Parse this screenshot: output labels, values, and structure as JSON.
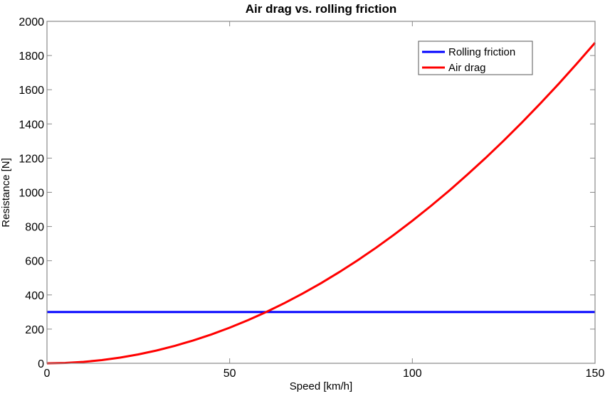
{
  "chart_data": {
    "type": "line",
    "title": "Air drag vs. rolling friction",
    "xlabel": "Speed [km/h]",
    "ylabel": "Resistance [N]",
    "xlim": [
      0,
      150
    ],
    "ylim": [
      0,
      2000
    ],
    "xticks": [
      0,
      50,
      100,
      150
    ],
    "yticks": [
      0,
      200,
      400,
      600,
      800,
      1000,
      1200,
      1400,
      1600,
      1800,
      2000
    ],
    "grid": false,
    "legend_position": "top-right",
    "series": [
      {
        "name": "Rolling friction",
        "color": "#0000ff",
        "x": [
          0,
          150
        ],
        "y": [
          300,
          300
        ]
      },
      {
        "name": "Air drag",
        "color": "#ff0000",
        "x": [
          0,
          5,
          10,
          15,
          20,
          25,
          30,
          35,
          40,
          45,
          50,
          55,
          60,
          65,
          70,
          75,
          80,
          85,
          90,
          95,
          100,
          105,
          110,
          115,
          120,
          125,
          130,
          135,
          140,
          145,
          150
        ],
        "y": [
          0,
          2.1,
          8.3,
          18.8,
          33.3,
          52.1,
          75,
          102.1,
          133.3,
          168.8,
          208.3,
          252.1,
          300,
          352.1,
          408.3,
          468.8,
          533.3,
          602.1,
          675,
          752.1,
          833.3,
          918.8,
          1008.3,
          1102.1,
          1200,
          1302.1,
          1408.3,
          1518.8,
          1633.3,
          1752.1,
          1875
        ]
      }
    ]
  }
}
